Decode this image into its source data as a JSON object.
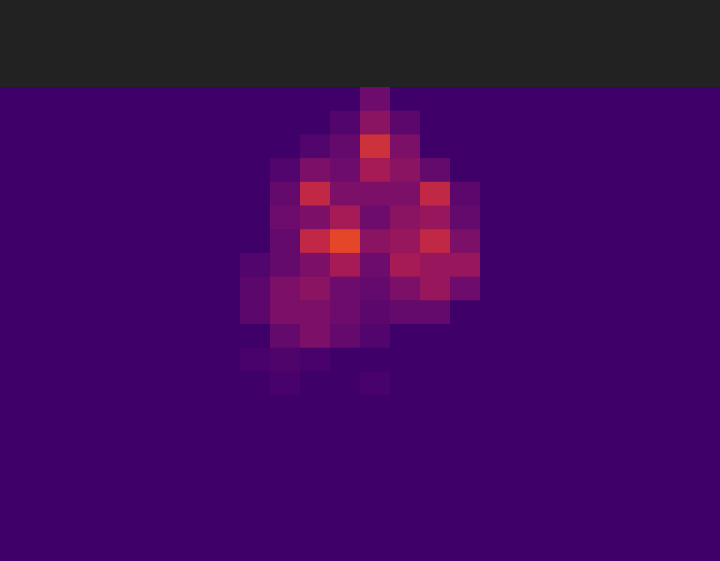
{
  "chart_data": {
    "type": "heatmap",
    "tick_labels": false,
    "zlim": [
      0,
      1
    ],
    "cells": [
      [
        0,
        0,
        0,
        0,
        0,
        0,
        0,
        0,
        0,
        0,
        0,
        0,
        0.25,
        0,
        0,
        0,
        0,
        0,
        0,
        0,
        0,
        0,
        0,
        0
      ],
      [
        0,
        0,
        0,
        0,
        0,
        0,
        0,
        0,
        0,
        0,
        0,
        0.1,
        0.35,
        0.15,
        0,
        0,
        0,
        0,
        0,
        0,
        0,
        0,
        0,
        0
      ],
      [
        0,
        0,
        0,
        0,
        0,
        0,
        0,
        0,
        0,
        0,
        0.1,
        0.2,
        0.6,
        0.3,
        0,
        0,
        0,
        0,
        0,
        0,
        0,
        0,
        0,
        0
      ],
      [
        0,
        0,
        0,
        0,
        0,
        0,
        0,
        0,
        0,
        0.1,
        0.3,
        0.25,
        0.45,
        0.35,
        0.2,
        0,
        0,
        0,
        0,
        0,
        0,
        0,
        0,
        0
      ],
      [
        0,
        0,
        0,
        0,
        0,
        0,
        0,
        0,
        0,
        0.2,
        0.55,
        0.3,
        0.3,
        0.3,
        0.55,
        0.15,
        0,
        0,
        0,
        0,
        0,
        0,
        0,
        0
      ],
      [
        0,
        0,
        0,
        0,
        0,
        0,
        0,
        0,
        0,
        0.25,
        0.3,
        0.45,
        0.25,
        0.35,
        0.4,
        0.2,
        0,
        0,
        0,
        0,
        0,
        0,
        0,
        0
      ],
      [
        0,
        0,
        0,
        0,
        0,
        0,
        0,
        0,
        0,
        0.2,
        0.55,
        0.7,
        0.35,
        0.4,
        0.55,
        0.3,
        0,
        0,
        0,
        0,
        0,
        0,
        0,
        0
      ],
      [
        0,
        0,
        0,
        0,
        0,
        0,
        0,
        0,
        0.1,
        0.2,
        0.3,
        0.45,
        0.25,
        0.45,
        0.4,
        0.4,
        0,
        0,
        0,
        0,
        0,
        0,
        0,
        0
      ],
      [
        0,
        0,
        0,
        0,
        0,
        0,
        0,
        0,
        0.15,
        0.3,
        0.35,
        0.25,
        0.2,
        0.3,
        0.4,
        0.25,
        0,
        0,
        0,
        0,
        0,
        0,
        0,
        0
      ],
      [
        0,
        0,
        0,
        0,
        0,
        0,
        0,
        0,
        0.15,
        0.3,
        0.3,
        0.25,
        0.15,
        0.2,
        0.2,
        0,
        0,
        0,
        0,
        0,
        0,
        0,
        0,
        0
      ],
      [
        0,
        0,
        0,
        0,
        0,
        0,
        0,
        0,
        0,
        0.2,
        0.3,
        0.2,
        0.1,
        0,
        0,
        0,
        0,
        0,
        0,
        0,
        0,
        0,
        0,
        0
      ],
      [
        0,
        0,
        0,
        0,
        0,
        0,
        0,
        0,
        0.05,
        0.08,
        0.05,
        0,
        0,
        0,
        0,
        0,
        0,
        0,
        0,
        0,
        0,
        0,
        0,
        0
      ],
      [
        0,
        0,
        0,
        0,
        0,
        0,
        0,
        0,
        0,
        0.05,
        0,
        0,
        0.05,
        0,
        0,
        0,
        0,
        0,
        0,
        0,
        0,
        0,
        0,
        0
      ],
      [
        0,
        0,
        0,
        0,
        0,
        0,
        0,
        0,
        0,
        0,
        0,
        0,
        0,
        0,
        0,
        0,
        0,
        0,
        0,
        0,
        0,
        0,
        0,
        0
      ],
      [
        0,
        0,
        0,
        0,
        0,
        0,
        0,
        0,
        0,
        0,
        0,
        0,
        0,
        0,
        0,
        0,
        0,
        0,
        0,
        0,
        0,
        0,
        0,
        0
      ],
      [
        0,
        0,
        0,
        0,
        0,
        0,
        0,
        0,
        0,
        0,
        0,
        0,
        0,
        0,
        0,
        0,
        0,
        0,
        0,
        0,
        0,
        0,
        0,
        0
      ],
      [
        0,
        0,
        0,
        0,
        0,
        0,
        0,
        0,
        0,
        0,
        0,
        0,
        0,
        0,
        0,
        0,
        0,
        0,
        0,
        0,
        0,
        0,
        0,
        0
      ],
      [
        0,
        0,
        0,
        0,
        0,
        0,
        0,
        0,
        0,
        0,
        0,
        0,
        0,
        0,
        0,
        0,
        0,
        0,
        0,
        0,
        0,
        0,
        0,
        0
      ],
      [
        0,
        0,
        0,
        0,
        0,
        0,
        0,
        0,
        0,
        0,
        0,
        0,
        0,
        0,
        0,
        0,
        0,
        0,
        0,
        0,
        0,
        0,
        0,
        0
      ],
      [
        0,
        0,
        0,
        0,
        0,
        0,
        0,
        0,
        0,
        0,
        0,
        0,
        0,
        0,
        0,
        0,
        0,
        0,
        0,
        0,
        0,
        0,
        0,
        0
      ]
    ]
  }
}
